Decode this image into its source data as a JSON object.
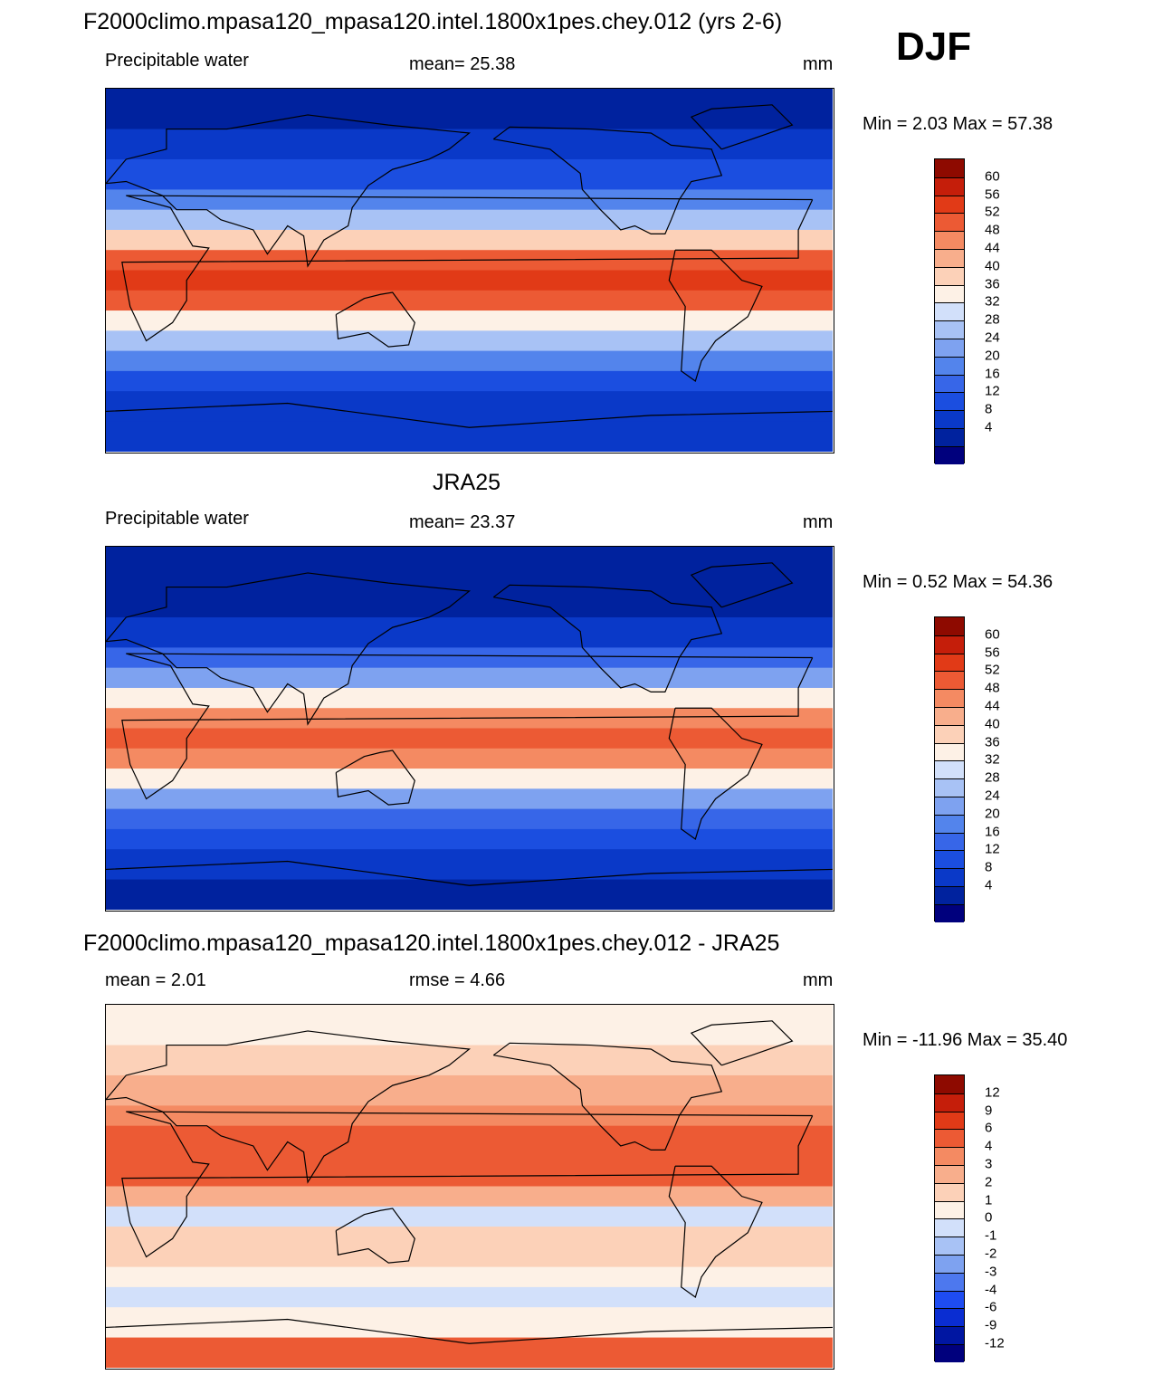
{
  "season": "DJF",
  "colors": {
    "seq_scale": [
      "#00007d",
      "#00229e",
      "#0a39c8",
      "#1b4ee0",
      "#3766e8",
      "#5384ec",
      "#7ea2f0",
      "#a8c2f5",
      "#d2e0fa",
      "#fdf1e6",
      "#fcd1b8",
      "#f8ae8c",
      "#f48a62",
      "#ec5a34",
      "#e13a17",
      "#c51e0a",
      "#8e0a00"
    ],
    "diff_scale": [
      "#00007d",
      "#0016a2",
      "#0a2dd2",
      "#1e4cf2",
      "#4d78ee",
      "#7ea2f0",
      "#a8c2f5",
      "#d2e0fa",
      "#fdf1e6",
      "#fcd1b8",
      "#f8ae8c",
      "#f48a62",
      "#ec5a34",
      "#e13a17",
      "#c51e0a",
      "#8e0a00"
    ]
  },
  "panels": [
    {
      "title": "F2000climo.mpasa120_mpasa120.intel.1800x1pes.chey.012 (yrs 2-6)",
      "left_label": "Precipitable water",
      "center_label": "mean=  25.38",
      "units": "mm",
      "minmax": "Min =   2.03 Max =  57.38"
    },
    {
      "title": "JRA25",
      "left_label": "Precipitable water",
      "center_label": "mean=  23.37",
      "units": "mm",
      "minmax": "Min =   0.52 Max =  54.36"
    },
    {
      "title": "F2000climo.mpasa120_mpasa120.intel.1800x1pes.chey.012 - JRA25",
      "left_label": "mean =   2.01",
      "center_label": "rmse =   4.66",
      "units": "mm",
      "minmax": "Min = -11.96 Max =  35.40"
    }
  ],
  "chart_data": [
    {
      "type": "heatmap",
      "title": "F2000climo.mpasa120_mpasa120.intel.1800x1pes.chey.012 (yrs 2-6)",
      "variable": "Precipitable water",
      "units": "mm",
      "mean": 25.38,
      "min": 2.03,
      "max": 57.38,
      "colorbar_levels": [
        "60",
        "56",
        "52",
        "48",
        "44",
        "40",
        "36",
        "32",
        "28",
        "24",
        "20",
        "16",
        "12",
        "8",
        "4"
      ],
      "bands": [
        {
          "lat": 90,
          "value": 2
        },
        {
          "lat": 70,
          "value": 5
        },
        {
          "lat": 55,
          "value": 10
        },
        {
          "lat": 40,
          "value": 18
        },
        {
          "lat": 30,
          "value": 27
        },
        {
          "lat": 20,
          "value": 38
        },
        {
          "lat": 10,
          "value": 50
        },
        {
          "lat": 0,
          "value": 54
        },
        {
          "lat": -10,
          "value": 48
        },
        {
          "lat": -20,
          "value": 35
        },
        {
          "lat": -30,
          "value": 24
        },
        {
          "lat": -40,
          "value": 17
        },
        {
          "lat": -50,
          "value": 11
        },
        {
          "lat": -60,
          "value": 7
        },
        {
          "lat": -75,
          "value": 4
        },
        {
          "lat": -90,
          "value": 2
        }
      ]
    },
    {
      "type": "heatmap",
      "title": "JRA25",
      "variable": "Precipitable water",
      "units": "mm",
      "mean": 23.37,
      "min": 0.52,
      "max": 54.36,
      "colorbar_levels": [
        "60",
        "56",
        "52",
        "48",
        "44",
        "40",
        "36",
        "32",
        "28",
        "24",
        "20",
        "16",
        "12",
        "8",
        "4"
      ],
      "bands": [
        {
          "lat": 90,
          "value": 1
        },
        {
          "lat": 70,
          "value": 3
        },
        {
          "lat": 55,
          "value": 7
        },
        {
          "lat": 40,
          "value": 14
        },
        {
          "lat": 30,
          "value": 22
        },
        {
          "lat": 20,
          "value": 34
        },
        {
          "lat": 10,
          "value": 45
        },
        {
          "lat": 0,
          "value": 49
        },
        {
          "lat": -10,
          "value": 44
        },
        {
          "lat": -20,
          "value": 32
        },
        {
          "lat": -30,
          "value": 22
        },
        {
          "lat": -40,
          "value": 15
        },
        {
          "lat": -50,
          "value": 10
        },
        {
          "lat": -60,
          "value": 6
        },
        {
          "lat": -75,
          "value": 3
        },
        {
          "lat": -90,
          "value": 1
        }
      ]
    },
    {
      "type": "heatmap",
      "title": "F2000climo.mpasa120_mpasa120.intel.1800x1pes.chey.012 - JRA25",
      "units": "mm",
      "mean": 2.01,
      "rmse": 4.66,
      "min": -11.96,
      "max": 35.4,
      "colorbar_levels": [
        "12",
        "9",
        "6",
        "4",
        "3",
        "2",
        "1",
        "0",
        "-1",
        "-2",
        "-3",
        "-4",
        "-6",
        "-9",
        "-12"
      ],
      "bands": [
        {
          "lat": 90,
          "value": 0.5
        },
        {
          "lat": 70,
          "value": 1
        },
        {
          "lat": 55,
          "value": 2
        },
        {
          "lat": 40,
          "value": 3
        },
        {
          "lat": 30,
          "value": 4
        },
        {
          "lat": 20,
          "value": 5
        },
        {
          "lat": 10,
          "value": 4
        },
        {
          "lat": 0,
          "value": 2
        },
        {
          "lat": -10,
          "value": -1
        },
        {
          "lat": -20,
          "value": 1
        },
        {
          "lat": -30,
          "value": 1.5
        },
        {
          "lat": -40,
          "value": 0.5
        },
        {
          "lat": -50,
          "value": -0.5
        },
        {
          "lat": -60,
          "value": 0.5
        },
        {
          "lat": -75,
          "value": 4
        },
        {
          "lat": -90,
          "value": 5
        }
      ]
    }
  ]
}
